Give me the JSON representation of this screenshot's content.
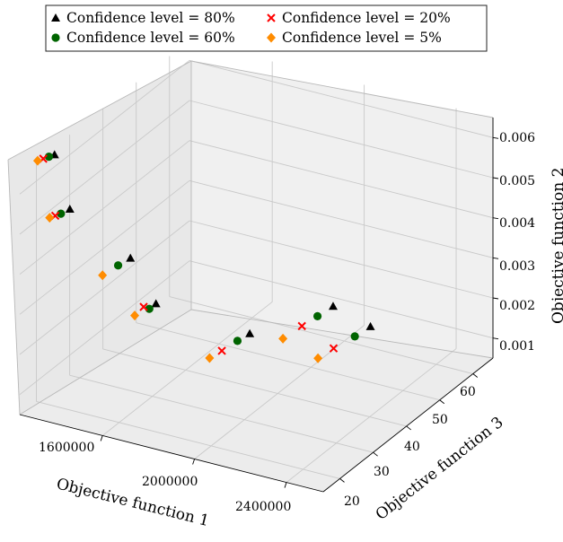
{
  "chart_data": {
    "type": "scatter",
    "projection": "3d",
    "legend": {
      "placement": "top",
      "entries": [
        {
          "label": "Confidence level = 80%",
          "marker": "triangle",
          "color": "#000000"
        },
        {
          "label": "Confidence level = 60%",
          "marker": "circle",
          "color": "#006400"
        },
        {
          "label": "Confidence level = 20%",
          "marker": "x",
          "color": "#ff0000"
        },
        {
          "label": "Confidence level = 5%",
          "marker": "diamond",
          "color": "#ff8c00"
        }
      ]
    },
    "xlabel": "Objective function 1",
    "ylabel": "Objective function 3",
    "zlabel": "Objective function 2",
    "x_ticks": [
      "1600000",
      "2000000",
      "2400000"
    ],
    "y_ticks": [
      "20",
      "30",
      "40",
      "50",
      "60"
    ],
    "z_ticks": [
      "0.001",
      "0.002",
      "0.003",
      "0.004",
      "0.005",
      "0.006"
    ],
    "grid": true,
    "series": [
      {
        "name": "Confidence level = 80%",
        "points": [
          {
            "x": 1290000,
            "y": 22,
            "z": 0.0066
          },
          {
            "x": 1400000,
            "y": 19,
            "z": 0.0056
          },
          {
            "x": 1620000,
            "y": 22,
            "z": 0.0045
          },
          {
            "x": 1760000,
            "y": 20,
            "z": 0.0037
          },
          {
            "x": 2110000,
            "y": 24,
            "z": 0.0032
          },
          {
            "x": 2270000,
            "y": 38,
            "z": 0.0032
          },
          {
            "x": 2360000,
            "y": 43,
            "z": 0.0025
          }
        ]
      },
      {
        "name": "Confidence level = 60%",
        "points": [
          {
            "x": 1280000,
            "y": 21,
            "z": 0.0066
          },
          {
            "x": 1390000,
            "y": 17,
            "z": 0.0056
          },
          {
            "x": 1610000,
            "y": 19,
            "z": 0.0045
          },
          {
            "x": 1760000,
            "y": 18,
            "z": 0.0037
          },
          {
            "x": 2100000,
            "y": 21,
            "z": 0.0032
          },
          {
            "x": 2260000,
            "y": 34,
            "z": 0.0032
          },
          {
            "x": 2350000,
            "y": 39,
            "z": 0.0025
          }
        ]
      },
      {
        "name": "Confidence level = 20%",
        "points": [
          {
            "x": 1270000,
            "y": 20,
            "z": 0.0066
          },
          {
            "x": 1380000,
            "y": 16,
            "z": 0.0056
          },
          {
            "x": 1750000,
            "y": 17,
            "z": 0.0038
          },
          {
            "x": 2090000,
            "y": 17,
            "z": 0.0032
          },
          {
            "x": 2250000,
            "y": 30,
            "z": 0.0032
          },
          {
            "x": 2330000,
            "y": 34,
            "z": 0.0025
          }
        ]
      },
      {
        "name": "Confidence level = 5%",
        "points": [
          {
            "x": 1260000,
            "y": 19,
            "z": 0.0066
          },
          {
            "x": 1370000,
            "y": 15,
            "z": 0.0056
          },
          {
            "x": 1600000,
            "y": 15,
            "z": 0.0045
          },
          {
            "x": 1740000,
            "y": 15,
            "z": 0.0037
          },
          {
            "x": 2080000,
            "y": 14,
            "z": 0.0032
          },
          {
            "x": 2240000,
            "y": 25,
            "z": 0.0032
          },
          {
            "x": 2320000,
            "y": 30,
            "z": 0.0025
          }
        ]
      }
    ]
  }
}
